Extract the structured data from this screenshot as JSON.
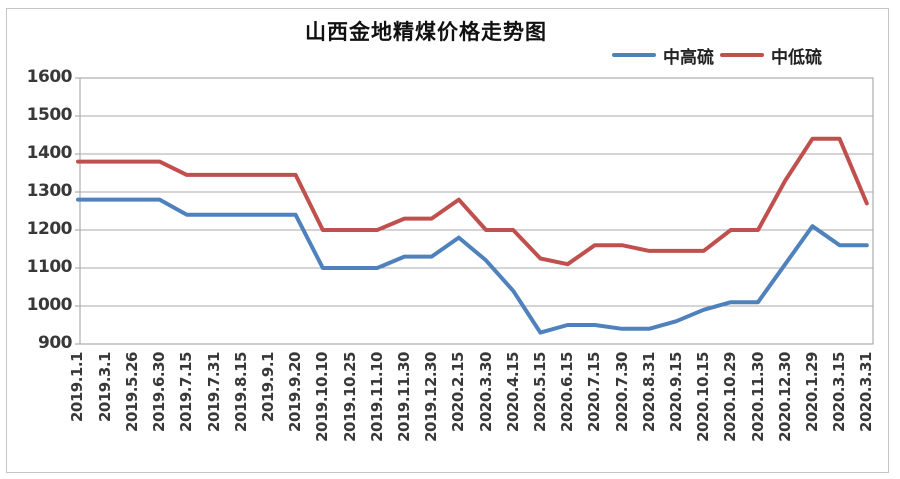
{
  "chart_data": {
    "type": "line",
    "title": "山西金地精煤价格走势图",
    "categories": [
      "2019.1.1",
      "2019.3.1",
      "2019.5.26",
      "2019.6.30",
      "2019.7.15",
      "2019.7.31",
      "2019.8.15",
      "2019.9.1",
      "2019.9.20",
      "2019.10.10",
      "2019.10.25",
      "2019.11.10",
      "2019.11.30",
      "2019.12.30",
      "2020.2.15",
      "2020.3.30",
      "2020.4.15",
      "2020.5.15",
      "2020.6.15",
      "2020.7.15",
      "2020.7.30",
      "2020.8.31",
      "2020.9.15",
      "2020.10.15",
      "2020.10.29",
      "2020.11.30",
      "2020.12.30",
      "2020.1.29",
      "2020.3.15",
      "2020.3.31"
    ],
    "series": [
      {
        "name": "中高硫",
        "color": "#4f81bd",
        "values": [
          1280,
          1280,
          1280,
          1280,
          1240,
          1240,
          1240,
          1240,
          1240,
          1100,
          1100,
          1100,
          1130,
          1130,
          1180,
          1120,
          1040,
          930,
          950,
          950,
          940,
          940,
          960,
          990,
          1010,
          1010,
          1110,
          1210,
          1160,
          1160
        ]
      },
      {
        "name": "中低硫",
        "color": "#c0504d",
        "values": [
          1380,
          1380,
          1380,
          1380,
          1345,
          1345,
          1345,
          1345,
          1345,
          1200,
          1200,
          1200,
          1230,
          1230,
          1280,
          1200,
          1200,
          1125,
          1110,
          1160,
          1160,
          1145,
          1145,
          1145,
          1200,
          1200,
          1330,
          1440,
          1440,
          1270
        ]
      }
    ],
    "ylim": [
      900,
      1600
    ],
    "ytick_step": 100,
    "ytick_labels": [
      "1600",
      "1500",
      "1400",
      "1300",
      "1200",
      "1100",
      "1000",
      "900"
    ],
    "xlabel": "",
    "ylabel": "",
    "grid": true,
    "legend_position": "top-right",
    "grid_color": "#ababab",
    "border_color": "#9e9e9e"
  }
}
